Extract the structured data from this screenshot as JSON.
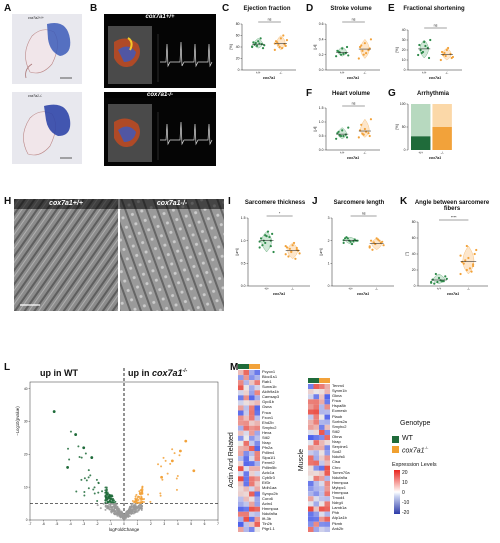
{
  "panels": {
    "A": {
      "label": "A",
      "top_caption": "cox7a1+/+",
      "bottom_caption": "cox7a1-/-"
    },
    "B": {
      "label": "B",
      "top_title": "cox7a1+/+",
      "bottom_title": "cox7a1-/-"
    },
    "C": {
      "label": "C",
      "title": "Ejection fraction",
      "ylabel": "[%]",
      "sig": "ns",
      "xlabel": "cox7a1"
    },
    "D": {
      "label": "D",
      "title": "Stroke volume",
      "ylabel": "[μl]",
      "sig": "ns",
      "xlabel": "cox7a1"
    },
    "E": {
      "label": "E",
      "title": "Fractional shortening",
      "ylabel": "[%]",
      "sig": "ns",
      "xlabel": "cox7a1"
    },
    "F": {
      "label": "F",
      "title": "Heart volume",
      "ylabel": "[μl]",
      "sig": "ns",
      "xlabel": "cox7a1"
    },
    "G": {
      "label": "G",
      "title": "Arrhythmia",
      "ylabel": "[%]",
      "xlabel": "cox7a1"
    },
    "H": {
      "label": "H",
      "left_title": "cox7a1+/+",
      "right_title": "cox7a1-/-"
    },
    "I": {
      "label": "I",
      "title": "Sarcomere thickness",
      "ylabel": "[µm]",
      "sig": "*",
      "xlabel": "cox7a1"
    },
    "J": {
      "label": "J",
      "title": "Sarcomere length",
      "ylabel": "[µm]",
      "sig": "ns",
      "xlabel": "cox7a1"
    },
    "K": {
      "label": "K",
      "title": "Angle between sarcomere fibers",
      "ylabel": "[°]",
      "sig": "****",
      "xlabel": "cox7a1"
    },
    "L": {
      "label": "L",
      "left_text": "up in WT",
      "right_text_prefix": "up in ",
      "right_text_gene": "cox7a1",
      "right_text_sup": "-/-",
      "xlabel": "logFoldChange",
      "ylabel": "−Log10(pvalue)"
    },
    "M": {
      "label": "M",
      "group1": "Actin And Related",
      "group2": "Muscle",
      "genes_left": [
        "Pcyox1",
        "Blocl1s1",
        "Rab1",
        "Sunw1b",
        "Aldh9a1b",
        "Camsap3",
        "Gpd1b",
        "Gsna",
        "Fnca",
        "Fxon1",
        "Ehd2b",
        "Smyhc2",
        "Hexa",
        "Stil2",
        "Nrap",
        "Pfn2a",
        "Pdlim4",
        "Sipa1l1",
        "Fermt2",
        "Pdlim5b",
        "Actc1a",
        "Cyb5r3",
        "Eif3r",
        "Mdh1aa",
        "Synpo2b",
        "Coro6",
        "Actn4",
        "Hmmpua",
        "Ndufa9a",
        "Ift-3b",
        "Tln2b",
        "Ptgr1.1"
      ],
      "genes_right": [
        "Tenm4",
        "Synm1b",
        "Gkna",
        "Fnca",
        "Hspa8b",
        "Eomesb",
        "Plaub",
        "Sorbs2a",
        "Smyhc2",
        "Stil2",
        "Obna",
        "Nrap",
        "Serpine1",
        "Sod2",
        "Ndufs6",
        "Cisa",
        "Chrc",
        "Tomm70a",
        "Ndufa9a",
        "Hmmpua",
        "Mybpc1",
        "Hmmpua",
        "Tmod4",
        "Ndrg4",
        "Lamb1a",
        "Phb",
        "Atp1a1b",
        "Pkmb",
        "Ank2b"
      ]
    }
  },
  "legend": {
    "title": "Genotype",
    "wt": "WT",
    "ko_gene": "cox7a1",
    "ko_sup": "-/-",
    "scale_title": "Expression Levels",
    "ticks": [
      "20",
      "10",
      "0",
      "-10",
      "-20"
    ]
  },
  "chart_data": [
    {
      "panel": "C",
      "type": "scatter",
      "categories": [
        "+/+",
        "-/-"
      ],
      "ylim": [
        0,
        80
      ],
      "yticks": [
        "0",
        "20",
        "40",
        "60",
        "80"
      ],
      "series": [
        {
          "name": "+/+",
          "values": [
            40,
            42,
            45,
            48,
            50,
            38,
            44,
            46,
            43,
            47,
            55,
            41
          ]
        },
        {
          "name": "-/-",
          "values": [
            35,
            40,
            45,
            50,
            55,
            42,
            48,
            38,
            52,
            44,
            60,
            46
          ]
        }
      ]
    },
    {
      "panel": "D",
      "type": "scatter",
      "categories": [
        "+/+",
        "-/-"
      ],
      "ylim": [
        0,
        0.6
      ],
      "yticks": [
        "0.0",
        "0.2",
        "0.4",
        "0.6"
      ],
      "series": [
        {
          "name": "+/+",
          "values": [
            0.18,
            0.2,
            0.22,
            0.25,
            0.28,
            0.3,
            0.24,
            0.21,
            0.19,
            0.23
          ]
        },
        {
          "name": "-/-",
          "values": [
            0.15,
            0.2,
            0.26,
            0.3,
            0.35,
            0.28,
            0.32,
            0.22,
            0.4,
            0.25
          ]
        }
      ]
    },
    {
      "panel": "E",
      "type": "scatter",
      "categories": [
        "+/+",
        "-/-"
      ],
      "ylim": [
        0,
        40
      ],
      "yticks": [
        "0",
        "10",
        "20",
        "30",
        "40"
      ],
      "series": [
        {
          "name": "+/+",
          "values": [
            15,
            18,
            22,
            25,
            28,
            12,
            20,
            24,
            30,
            17
          ]
        },
        {
          "name": "-/-",
          "values": [
            10,
            14,
            16,
            18,
            20,
            12,
            15,
            22,
            13,
            17
          ]
        }
      ]
    },
    {
      "panel": "F",
      "type": "scatter",
      "categories": [
        "+/+",
        "-/-"
      ],
      "ylim": [
        0,
        1.5
      ],
      "yticks": [
        "0.0",
        "0.5",
        "1.0",
        "1.5"
      ],
      "series": [
        {
          "name": "+/+",
          "values": [
            0.4,
            0.5,
            0.55,
            0.6,
            0.7,
            0.45,
            0.65,
            0.5,
            0.8,
            0.52
          ]
        },
        {
          "name": "-/-",
          "values": [
            0.45,
            0.55,
            0.6,
            0.7,
            0.75,
            0.5,
            0.9,
            0.65,
            1.1,
            0.58
          ]
        }
      ]
    },
    {
      "panel": "G",
      "type": "bar",
      "categories": [
        "+/+",
        "-/-"
      ],
      "ylim": [
        0,
        100
      ],
      "yticks": [
        "0",
        "50",
        "100"
      ],
      "series": [
        {
          "name": "arrhythmic",
          "values": [
            30,
            50
          ]
        },
        {
          "name": "normal",
          "values": [
            70,
            50
          ]
        }
      ]
    },
    {
      "panel": "I",
      "type": "scatter",
      "categories": [
        "+/+",
        "-/-"
      ],
      "ylim": [
        0,
        1.5
      ],
      "yticks": [
        "0.0",
        "0.5",
        "1.0",
        "1.5"
      ],
      "series": [
        {
          "name": "+/+",
          "values": [
            0.85,
            0.95,
            1.0,
            1.05,
            1.1,
            1.15,
            0.9,
            1.2,
            0.75,
            1.0,
            1.08,
            0.98,
            1.12,
            0.88
          ]
        },
        {
          "name": "-/-",
          "values": [
            0.7,
            0.75,
            0.8,
            0.85,
            0.9,
            0.78,
            0.65,
            0.95,
            0.72,
            0.82,
            0.6,
            0.88,
            0.76,
            0.84
          ]
        }
      ]
    },
    {
      "panel": "J",
      "type": "scatter",
      "categories": [
        "+/+",
        "-/-"
      ],
      "ylim": [
        0,
        3
      ],
      "yticks": [
        "0",
        "1",
        "2",
        "3"
      ],
      "series": [
        {
          "name": "+/+",
          "values": [
            1.9,
            2.0,
            2.05,
            2.1,
            1.95,
            2.0,
            2.15,
            1.85,
            2.0,
            2.1,
            1.98,
            2.02
          ]
        },
        {
          "name": "-/-",
          "values": [
            1.7,
            1.85,
            1.9,
            2.0,
            2.1,
            1.95,
            1.6,
            2.05,
            1.8,
            1.92,
            2.0,
            1.75
          ]
        }
      ]
    },
    {
      "panel": "K",
      "type": "scatter",
      "categories": [
        "+/+",
        "-/-"
      ],
      "ylim": [
        0,
        80
      ],
      "yticks": [
        "0",
        "20",
        "40",
        "60",
        "80"
      ],
      "series": [
        {
          "name": "+/+",
          "values": [
            4,
            5,
            6,
            8,
            10,
            12,
            3,
            7,
            9,
            15,
            6,
            5
          ]
        },
        {
          "name": "-/-",
          "values": [
            15,
            20,
            25,
            30,
            35,
            40,
            28,
            22,
            45,
            32,
            18,
            38,
            50,
            27
          ]
        }
      ]
    },
    {
      "panel": "L",
      "type": "scatter",
      "xlabel": "logFoldChange",
      "ylabel": "−Log10(pvalue)",
      "xlim": [
        -7,
        7
      ],
      "ylim": [
        0,
        42
      ],
      "xticks": [
        "-7",
        "-6",
        "-5",
        "-4",
        "-3",
        "-2",
        "-1",
        "0",
        "1",
        "2",
        "3",
        "4",
        "5",
        "6",
        "7"
      ],
      "yticks": [
        "0",
        "10",
        "20",
        "30",
        "40"
      ]
    }
  ]
}
